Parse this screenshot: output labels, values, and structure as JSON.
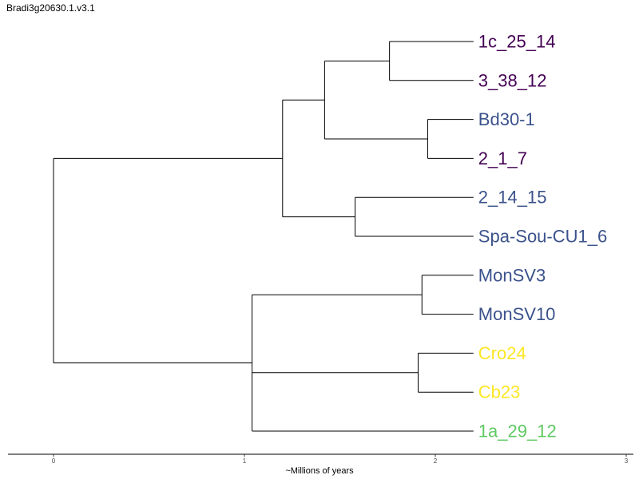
{
  "title": "Bradi3g20630.1.v3.1",
  "chart_data": {
    "type": "phylogenetic-tree",
    "xlabel": "~Millions of years",
    "xlim": [
      -0.25,
      3.0
    ],
    "x_ticks": [
      "0",
      "1",
      "2",
      "3"
    ],
    "x_tick_values": [
      0,
      1,
      2,
      3
    ],
    "colors": {
      "purple": "#440154",
      "blue": "#3b528b",
      "yellow": "#fde725",
      "green": "#5ec962"
    },
    "nodes": [
      {
        "id": "root",
        "x": 0.0,
        "children": [
          "A",
          "B"
        ]
      },
      {
        "id": "A",
        "x": 1.2,
        "children": [
          "C",
          "G"
        ]
      },
      {
        "id": "C",
        "x": 1.42,
        "children": [
          "D",
          "E"
        ]
      },
      {
        "id": "D",
        "x": 1.76,
        "children": [
          "t1",
          "t2"
        ]
      },
      {
        "id": "E",
        "x": 1.96,
        "children": [
          "t3",
          "t4"
        ]
      },
      {
        "id": "G",
        "x": 1.58,
        "children": [
          "t5",
          "t6"
        ]
      },
      {
        "id": "B",
        "x": 1.04,
        "children": [
          "H",
          "I",
          "t11"
        ]
      },
      {
        "id": "H",
        "x": 1.93,
        "children": [
          "t7",
          "t8"
        ]
      },
      {
        "id": "I",
        "x": 1.91,
        "children": [
          "t9",
          "t10"
        ]
      }
    ],
    "tips": [
      {
        "id": "t1",
        "label": "1c_25_14",
        "x": 2.2,
        "color": "#440154"
      },
      {
        "id": "t2",
        "label": "3_38_12",
        "x": 2.2,
        "color": "#440154"
      },
      {
        "id": "t3",
        "label": "Bd30-1",
        "x": 2.2,
        "color": "#3b528b"
      },
      {
        "id": "t4",
        "label": "2_1_7",
        "x": 2.2,
        "color": "#440154"
      },
      {
        "id": "t5",
        "label": "2_14_15",
        "x": 2.2,
        "color": "#3b528b"
      },
      {
        "id": "t6",
        "label": "Spa-Sou-CU1_6",
        "x": 2.2,
        "color": "#3b528b"
      },
      {
        "id": "t7",
        "label": "MonSV3",
        "x": 2.2,
        "color": "#3b528b"
      },
      {
        "id": "t8",
        "label": "MonSV10",
        "x": 2.2,
        "color": "#3b528b"
      },
      {
        "id": "t9",
        "label": "Cro24",
        "x": 2.2,
        "color": "#fde725"
      },
      {
        "id": "t10",
        "label": "Cb23",
        "x": 2.2,
        "color": "#fde725"
      },
      {
        "id": "t11",
        "label": "1a_29_12",
        "x": 2.2,
        "color": "#5ec962"
      }
    ]
  }
}
